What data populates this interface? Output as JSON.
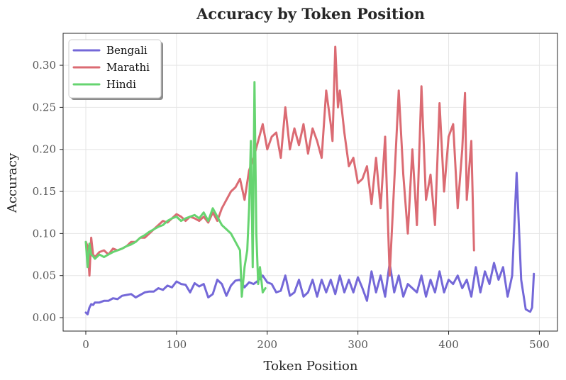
{
  "chart_data": {
    "type": "line",
    "title": "Accuracy by Token Position",
    "xlabel": "Token Position",
    "ylabel": "Accuracy",
    "xlim": [
      -25,
      520
    ],
    "ylim": [
      -0.016,
      0.338
    ],
    "xticks": [
      0,
      100,
      200,
      300,
      400,
      500
    ],
    "xtick_labels": [
      "0",
      "100",
      "200",
      "300",
      "400",
      "500"
    ],
    "yticks": [
      0.0,
      0.05,
      0.1,
      0.15,
      0.2,
      0.25,
      0.3
    ],
    "ytick_labels": [
      "0.00",
      "0.05",
      "0.10",
      "0.15",
      "0.20",
      "0.25",
      "0.30"
    ],
    "grid": true,
    "legend_position": "top-left",
    "series": [
      {
        "name": "Bengali",
        "color": "#7468d8",
        "x": [
          0,
          2,
          4,
          6,
          8,
          10,
          15,
          20,
          25,
          30,
          35,
          40,
          45,
          50,
          55,
          60,
          65,
          70,
          75,
          80,
          85,
          90,
          95,
          100,
          105,
          110,
          115,
          120,
          125,
          130,
          135,
          140,
          145,
          150,
          155,
          160,
          165,
          170,
          175,
          180,
          185,
          190,
          195,
          200,
          205,
          210,
          215,
          220,
          225,
          230,
          235,
          240,
          245,
          250,
          255,
          260,
          265,
          270,
          275,
          280,
          285,
          290,
          295,
          300,
          305,
          310,
          315,
          320,
          325,
          330,
          335,
          340,
          345,
          350,
          355,
          360,
          365,
          370,
          375,
          380,
          385,
          390,
          395,
          400,
          405,
          410,
          415,
          420,
          425,
          430,
          435,
          440,
          445,
          450,
          455,
          460,
          465,
          470,
          475,
          480,
          485,
          488,
          490,
          492,
          494
        ],
        "y": [
          0.006,
          0.004,
          0.012,
          0.016,
          0.015,
          0.018,
          0.018,
          0.02,
          0.02,
          0.023,
          0.022,
          0.026,
          0.027,
          0.028,
          0.024,
          0.027,
          0.03,
          0.031,
          0.031,
          0.035,
          0.033,
          0.038,
          0.036,
          0.043,
          0.04,
          0.039,
          0.03,
          0.041,
          0.037,
          0.04,
          0.024,
          0.028,
          0.045,
          0.04,
          0.026,
          0.038,
          0.044,
          0.045,
          0.036,
          0.042,
          0.04,
          0.044,
          0.05,
          0.042,
          0.04,
          0.03,
          0.032,
          0.05,
          0.026,
          0.03,
          0.045,
          0.025,
          0.03,
          0.045,
          0.025,
          0.045,
          0.03,
          0.045,
          0.028,
          0.05,
          0.03,
          0.045,
          0.03,
          0.048,
          0.035,
          0.02,
          0.055,
          0.03,
          0.05,
          0.025,
          0.065,
          0.03,
          0.05,
          0.025,
          0.04,
          0.035,
          0.03,
          0.05,
          0.025,
          0.045,
          0.03,
          0.055,
          0.03,
          0.045,
          0.04,
          0.05,
          0.035,
          0.045,
          0.025,
          0.06,
          0.03,
          0.055,
          0.04,
          0.065,
          0.045,
          0.06,
          0.025,
          0.05,
          0.172,
          0.045,
          0.01,
          0.008,
          0.007,
          0.012,
          0.052
        ]
      },
      {
        "name": "Marathi",
        "color": "#db6b73",
        "x": [
          0,
          2,
          4,
          6,
          8,
          10,
          15,
          20,
          25,
          30,
          35,
          40,
          45,
          50,
          55,
          60,
          65,
          70,
          75,
          80,
          85,
          90,
          95,
          100,
          105,
          110,
          115,
          120,
          125,
          130,
          135,
          140,
          145,
          150,
          155,
          160,
          165,
          170,
          175,
          180,
          185,
          190,
          195,
          200,
          205,
          210,
          215,
          220,
          225,
          230,
          235,
          240,
          245,
          250,
          255,
          260,
          265,
          270,
          272,
          275,
          278,
          280,
          285,
          290,
          295,
          300,
          305,
          310,
          315,
          320,
          325,
          330,
          335,
          340,
          345,
          350,
          355,
          360,
          365,
          370,
          375,
          380,
          385,
          390,
          395,
          400,
          405,
          410,
          415,
          418,
          420,
          425,
          428
        ],
        "y": [
          0.09,
          0.085,
          0.05,
          0.095,
          0.075,
          0.072,
          0.078,
          0.08,
          0.075,
          0.082,
          0.08,
          0.082,
          0.085,
          0.09,
          0.09,
          0.095,
          0.095,
          0.1,
          0.105,
          0.11,
          0.115,
          0.113,
          0.118,
          0.123,
          0.12,
          0.115,
          0.12,
          0.118,
          0.115,
          0.12,
          0.113,
          0.125,
          0.115,
          0.13,
          0.14,
          0.15,
          0.155,
          0.165,
          0.14,
          0.175,
          0.19,
          0.21,
          0.23,
          0.2,
          0.215,
          0.22,
          0.19,
          0.25,
          0.2,
          0.225,
          0.205,
          0.23,
          0.195,
          0.225,
          0.21,
          0.19,
          0.27,
          0.23,
          0.21,
          0.322,
          0.25,
          0.27,
          0.22,
          0.18,
          0.19,
          0.16,
          0.165,
          0.18,
          0.135,
          0.19,
          0.13,
          0.215,
          0.05,
          0.16,
          0.27,
          0.17,
          0.1,
          0.2,
          0.11,
          0.275,
          0.14,
          0.17,
          0.11,
          0.255,
          0.15,
          0.215,
          0.23,
          0.13,
          0.2,
          0.267,
          0.14,
          0.21,
          0.08
        ]
      },
      {
        "name": "Hindi",
        "color": "#66d470",
        "x": [
          0,
          2,
          4,
          6,
          8,
          10,
          15,
          20,
          25,
          30,
          35,
          40,
          45,
          50,
          55,
          60,
          65,
          70,
          75,
          80,
          85,
          90,
          95,
          100,
          105,
          110,
          115,
          120,
          125,
          130,
          135,
          140,
          145,
          150,
          155,
          160,
          165,
          170,
          172,
          175,
          178,
          180,
          182,
          184,
          186,
          188,
          190,
          192,
          195,
          198
        ],
        "y": [
          0.09,
          0.06,
          0.088,
          0.075,
          0.073,
          0.07,
          0.075,
          0.072,
          0.075,
          0.078,
          0.08,
          0.082,
          0.085,
          0.087,
          0.09,
          0.095,
          0.098,
          0.102,
          0.105,
          0.108,
          0.11,
          0.115,
          0.118,
          0.12,
          0.115,
          0.118,
          0.12,
          0.122,
          0.118,
          0.125,
          0.115,
          0.13,
          0.12,
          0.11,
          0.105,
          0.1,
          0.09,
          0.08,
          0.025,
          0.06,
          0.08,
          0.13,
          0.21,
          0.06,
          0.28,
          0.1,
          0.04,
          0.06,
          0.03,
          0.035
        ]
      }
    ]
  }
}
